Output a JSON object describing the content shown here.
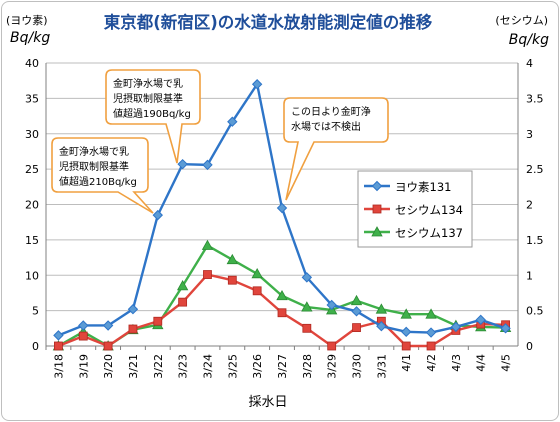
{
  "chart_data": {
    "type": "line",
    "title": "東京都(新宿区)の水道水放射能測定値の推移",
    "left_axis": {
      "label_top": "(ヨウ素)",
      "unit": "Bq/kg",
      "ylim": [
        0,
        40
      ],
      "ticks": [
        0,
        5,
        10,
        15,
        20,
        25,
        30,
        35,
        40
      ]
    },
    "right_axis": {
      "label_top": "(セシウム)",
      "unit": "Bq/kg",
      "ylim": [
        0,
        4
      ],
      "ticks": [
        "0",
        "0.5",
        "1",
        "1.5",
        "2",
        "2.5",
        "3",
        "3.5",
        "4"
      ]
    },
    "xlabel": "採水日",
    "categories": [
      "3/18",
      "3/19",
      "3/20",
      "3/21",
      "3/22",
      "3/23",
      "3/24",
      "3/25",
      "3/26",
      "3/27",
      "3/28",
      "3/29",
      "3/30",
      "3/31",
      "4/1",
      "4/2",
      "4/3",
      "4/4",
      "4/5"
    ],
    "grid": true,
    "legend_position": "right-middle",
    "series": [
      {
        "name": "ヨウ素131",
        "axis": "left",
        "marker": "diamond",
        "color": "#2e75c8",
        "values": [
          1.5,
          2.9,
          2.9,
          5.2,
          18.5,
          25.7,
          25.6,
          31.7,
          37.0,
          19.5,
          9.7,
          5.8,
          4.9,
          2.8,
          2.0,
          1.9,
          2.7,
          3.7,
          2.5
        ]
      },
      {
        "name": "セシウム134",
        "axis": "right",
        "marker": "square",
        "color": "#e0453c",
        "values": [
          0,
          0.14,
          0,
          0.24,
          0.35,
          0.62,
          1.01,
          0.93,
          0.78,
          0.47,
          0.25,
          0,
          0.26,
          0.35,
          0,
          0,
          0.22,
          0.31,
          0.3
        ]
      },
      {
        "name": "セシウム137",
        "axis": "right",
        "marker": "triangle",
        "color": "#3fb04a",
        "values": [
          0,
          0.2,
          0,
          0.23,
          0.3,
          0.85,
          1.42,
          1.22,
          1.02,
          0.71,
          0.55,
          0.51,
          0.64,
          0.52,
          0.45,
          0.45,
          0.29,
          0.27,
          0.26
        ]
      }
    ],
    "annotations": [
      {
        "text": [
          "金町浄水場で乳",
          "児摂取制限基準",
          "値超過210Bq/kg"
        ],
        "target_category": "3/22"
      },
      {
        "text": [
          "金町浄水場で乳",
          "児摂取制限基準",
          "値超過190Bq/kg"
        ],
        "target_category": "3/23"
      },
      {
        "text": [
          "この日より金町浄",
          "水場では不検出"
        ],
        "target_category": "3/27"
      }
    ]
  }
}
